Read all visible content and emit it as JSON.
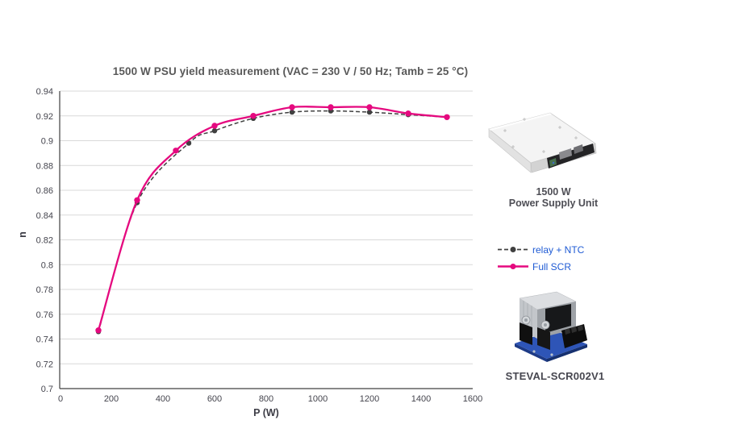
{
  "chart_data": {
    "type": "line",
    "title": "1500 W PSU yield measurement (VAC = 230 V / 50 Hz; Tamb = 25 °C)",
    "xlabel": "P (W)",
    "ylabel": "n",
    "xlim": [
      0,
      1600
    ],
    "ylim": [
      0.7,
      0.94
    ],
    "x_ticks": [
      0,
      200,
      400,
      600,
      800,
      1000,
      1200,
      1400,
      1600
    ],
    "x_tick_labels": [
      "0",
      "200",
      "400",
      "600",
      "800",
      "1000",
      "1200",
      "1400",
      "1600"
    ],
    "y_ticks": [
      0.94,
      0.92,
      0.9,
      0.88,
      0.86,
      0.84,
      0.82,
      0.8,
      0.78,
      0.76,
      0.74,
      0.72,
      0.7
    ],
    "y_tick_labels": [
      "0.94",
      "0.92",
      "0.9",
      "0.88",
      "0.86",
      "0.84",
      "0.82",
      "0.8",
      "0.78",
      "0.76",
      "0.74",
      "0.72",
      "0.7"
    ],
    "grid": "horizontal",
    "colors": {
      "axis": "#404040",
      "grid": "#D9D9D9",
      "tick_text": "#44444D",
      "title": "#595959"
    },
    "legend": {
      "position": "right",
      "labels_color": "#1F5BD4"
    },
    "series": [
      {
        "name": "relay + NTC",
        "color": "#404040",
        "dash": "5 3",
        "line_width": 1.5,
        "marker_r": 3.2,
        "points": [
          [
            150,
            0.746
          ],
          [
            300,
            0.85
          ],
          [
            500,
            0.898
          ],
          [
            600,
            0.908
          ],
          [
            750,
            0.918
          ],
          [
            900,
            0.923
          ],
          [
            1050,
            0.924
          ],
          [
            1200,
            0.923
          ],
          [
            1350,
            0.921
          ],
          [
            1500,
            0.919
          ]
        ]
      },
      {
        "name": "Full SCR",
        "color": "#E5097F",
        "dash": null,
        "line_width": 2.3,
        "marker_r": 3.7,
        "points": [
          [
            150,
            0.747
          ],
          [
            300,
            0.852
          ],
          [
            450,
            0.892
          ],
          [
            600,
            0.912
          ],
          [
            750,
            0.92
          ],
          [
            900,
            0.927
          ],
          [
            1050,
            0.927
          ],
          [
            1200,
            0.927
          ],
          [
            1350,
            0.922
          ],
          [
            1500,
            0.919
          ]
        ]
      }
    ]
  },
  "right_panel": {
    "psu_caption_line1": "1500 W",
    "psu_caption_line2": "Power Supply Unit",
    "steval_caption": "STEVAL-SCR002V1",
    "psu_image": "psu-photo",
    "steval_image": "steval-board-photo"
  }
}
